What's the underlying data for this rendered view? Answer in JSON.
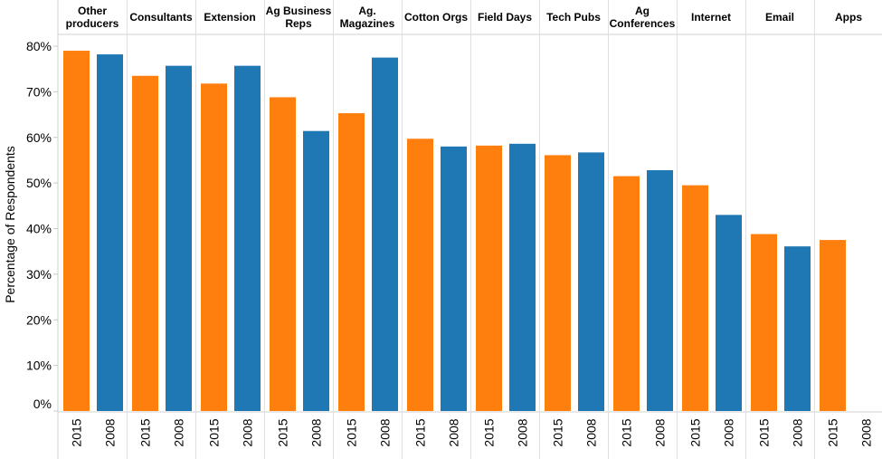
{
  "chart_data": {
    "type": "bar",
    "ylabel": "Percentage of Respondents",
    "ylim": [
      0,
      0.8
    ],
    "yticks": [
      "0%",
      "10%",
      "20%",
      "30%",
      "40%",
      "50%",
      "60%",
      "70%",
      "80%"
    ],
    "grid": false,
    "categories": [
      "Other producers",
      "Consultants",
      "Extension",
      "Ag Business Reps",
      "Ag. Magazines",
      "Cotton Orgs",
      "Field Days",
      "Tech Pubs",
      "Ag Conferences",
      "Internet",
      "Email",
      "Apps"
    ],
    "category_lines": [
      [
        "Other",
        "producers"
      ],
      [
        "Consultants"
      ],
      [
        "Extension"
      ],
      [
        "Ag Business",
        "Reps"
      ],
      [
        "Ag.",
        "Magazines"
      ],
      [
        "Cotton Orgs"
      ],
      [
        "Field Days"
      ],
      [
        "Tech Pubs"
      ],
      [
        "Ag",
        "Conferences"
      ],
      [
        "Internet"
      ],
      [
        "Email"
      ],
      [
        "Apps"
      ]
    ],
    "series": [
      {
        "name": "2015",
        "color": "#ff7f0e",
        "values": [
          0.79,
          0.735,
          0.718,
          0.688,
          0.653,
          0.597,
          0.582,
          0.561,
          0.515,
          0.495,
          0.388,
          0.375
        ]
      },
      {
        "name": "2008",
        "color": "#1f77b4",
        "values": [
          0.782,
          0.757,
          0.757,
          0.614,
          0.775,
          0.58,
          0.586,
          0.567,
          0.528,
          0.43,
          0.361,
          null
        ]
      }
    ]
  }
}
